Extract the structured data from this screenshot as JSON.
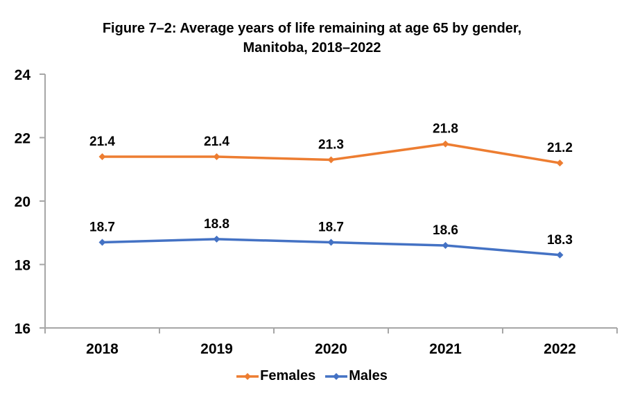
{
  "figure": {
    "title_line1": "Figure 7–2: Average years of life remaining at age 65 by gender,",
    "title_line2": "Manitoba, 2018–2022"
  },
  "colors": {
    "females": "#ED7D31",
    "males": "#4472C4",
    "axis": "#A6A6A6",
    "text": "#000000",
    "background": "#FFFFFF"
  },
  "chart_data": {
    "type": "line",
    "title": "Figure 7–2: Average years of life remaining at age 65 by gender, Manitoba, 2018–2022",
    "categories": [
      "2018",
      "2019",
      "2020",
      "2021",
      "2022"
    ],
    "series": [
      {
        "name": "Females",
        "color": "#ED7D31",
        "values": [
          21.4,
          21.4,
          21.3,
          21.8,
          21.2
        ]
      },
      {
        "name": "Males",
        "color": "#4472C4",
        "values": [
          18.7,
          18.8,
          18.7,
          18.6,
          18.3
        ]
      }
    ],
    "xlabel": "",
    "ylabel": "",
    "ylim": [
      16,
      24
    ],
    "yticks": [
      16,
      18,
      20,
      22,
      24
    ],
    "grid": false,
    "marker": "diamond",
    "data_labels": true,
    "legend_position": "bottom"
  }
}
